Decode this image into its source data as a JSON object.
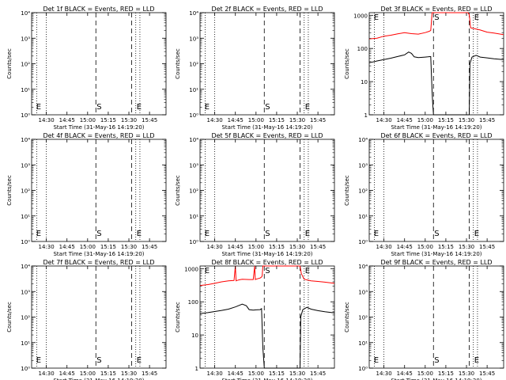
{
  "colors": {
    "events": "#000000",
    "lld": "#ff0000"
  },
  "shared": {
    "ylabel": "Counts/sec",
    "xlabel": "Start Time (31-May-16 14:19:20)",
    "x_ticks": [
      "14:30",
      "14:45",
      "15:00",
      "15:15",
      "15:30",
      "15:45"
    ],
    "x_tick_minutes": [
      30,
      45,
      60,
      75,
      90,
      105
    ],
    "x_range_minutes": [
      19.3,
      117
    ],
    "dotted_lines_minutes": [
      23,
      30,
      95,
      98
    ],
    "dashed_lines_minutes": [
      66,
      92
    ],
    "marker_labels": [
      "E",
      "S",
      "E"
    ]
  },
  "chart_data": [
    {
      "type": "line",
      "title": "Det 1f BLACK = Events, RED = LLD",
      "scale": "log",
      "ylim": [
        1,
        10000
      ],
      "y_ticks": [
        "10⁰",
        "10¹",
        "10²",
        "10³",
        "10⁴"
      ],
      "series": []
    },
    {
      "type": "line",
      "title": "Det 2f BLACK = Events, RED = LLD",
      "scale": "log",
      "ylim": [
        1,
        10000
      ],
      "y_ticks": [
        "10⁰",
        "10¹",
        "10²",
        "10³",
        "10⁴"
      ],
      "series": []
    },
    {
      "type": "line",
      "title": "Det 3f BLACK = Events, RED = LLD",
      "scale": "log",
      "ylim": [
        1,
        1200
      ],
      "y_ticks": [
        "1",
        "10",
        "100",
        "1000"
      ],
      "y_tick_values": [
        1,
        10,
        100,
        1000
      ],
      "series": [
        {
          "color": "lld",
          "x": [
            19.3,
            25,
            30,
            35,
            40,
            45,
            50,
            55,
            60,
            63,
            64,
            64.5,
            65,
            67,
            70,
            80,
            90,
            91,
            92,
            93,
            100,
            105,
            110,
            117
          ],
          "y": [
            195,
            205,
            235,
            250,
            275,
            300,
            280,
            270,
            300,
            330,
            350,
            600,
            1200,
            1200,
            1200,
            1200,
            1200,
            1200,
            1050,
            420,
            360,
            310,
            290,
            260
          ]
        },
        {
          "color": "events",
          "x": [
            19.3,
            25,
            30,
            35,
            40,
            45,
            48,
            50,
            52,
            55,
            58,
            60,
            62,
            64,
            65,
            65.5,
            66,
            67,
            92,
            92.5,
            94,
            97,
            100,
            105,
            110,
            117
          ],
          "y": [
            37,
            42,
            46,
            51,
            57,
            64,
            78,
            71,
            56,
            53,
            54,
            55,
            56,
            57,
            5,
            2,
            1,
            1,
            1,
            35,
            55,
            62,
            55,
            52,
            49,
            46
          ]
        }
      ]
    },
    {
      "type": "line",
      "title": "Det 4f BLACK = Events, RED = LLD",
      "scale": "log",
      "ylim": [
        1,
        10000
      ],
      "y_ticks": [
        "10⁰",
        "10¹",
        "10²",
        "10³",
        "10⁴"
      ],
      "series": []
    },
    {
      "type": "line",
      "title": "Det 5f BLACK = Events, RED = LLD",
      "scale": "log",
      "ylim": [
        1,
        10000
      ],
      "y_ticks": [
        "10⁰",
        "10¹",
        "10²",
        "10³",
        "10⁴"
      ],
      "series": []
    },
    {
      "type": "line",
      "title": "Det 6f BLACK = Events, RED = LLD",
      "scale": "log",
      "ylim": [
        1,
        10000
      ],
      "y_ticks": [
        "10⁰",
        "10¹",
        "10²",
        "10³",
        "10⁴"
      ],
      "series": []
    },
    {
      "type": "line",
      "title": "Det 7f BLACK = Events, RED = LLD",
      "scale": "log",
      "ylim": [
        1,
        10000
      ],
      "y_ticks": [
        "10⁰",
        "10¹",
        "10²",
        "10³",
        "10⁴"
      ],
      "series": []
    },
    {
      "type": "line",
      "title": "Det 8f BLACK = Events, RED = LLD",
      "scale": "log",
      "ylim": [
        1,
        1200
      ],
      "y_ticks": [
        "1",
        "10",
        "100",
        "1000"
      ],
      "y_tick_values": [
        1,
        10,
        100,
        1000
      ],
      "series": [
        {
          "color": "lld",
          "x": [
            19.3,
            25,
            30,
            35,
            40,
            44,
            45,
            45.5,
            46,
            48,
            50,
            55,
            58,
            59,
            59.5,
            60,
            63,
            64,
            64.5,
            65,
            66,
            67,
            80,
            90,
            92,
            93,
            95,
            100,
            105,
            110,
            117
          ],
          "y": [
            310,
            330,
            360,
            400,
            430,
            440,
            1200,
            430,
            440,
            460,
            480,
            470,
            470,
            1200,
            470,
            480,
            520,
            560,
            600,
            1200,
            1200,
            1200,
            1200,
            1200,
            1200,
            700,
            480,
            430,
            410,
            390,
            360
          ]
        },
        {
          "color": "events",
          "x": [
            19.3,
            25,
            30,
            35,
            40,
            45,
            50,
            53,
            55,
            58,
            60,
            63,
            64,
            65,
            65.5,
            66,
            67,
            92,
            92.5,
            94,
            97,
            100,
            105,
            110,
            117
          ],
          "y": [
            44,
            47,
            51,
            55,
            60,
            70,
            85,
            76,
            58,
            56,
            57,
            58,
            62,
            4,
            2,
            1,
            1,
            1,
            35,
            58,
            68,
            60,
            54,
            50,
            46
          ]
        }
      ]
    },
    {
      "type": "line",
      "title": "Det 9f BLACK = Events, RED = LLD",
      "scale": "log",
      "ylim": [
        1,
        10000
      ],
      "y_ticks": [
        "10⁰",
        "10¹",
        "10²",
        "10³",
        "10⁴"
      ],
      "series": []
    }
  ]
}
